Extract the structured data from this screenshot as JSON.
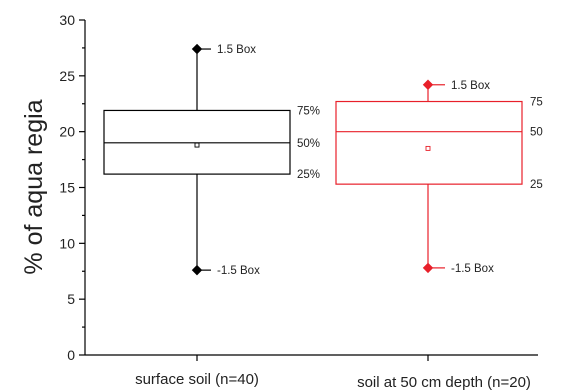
{
  "chart_data": {
    "type": "box",
    "ylabel": "% of aqua regia",
    "xlabel": "",
    "ylim": [
      0,
      30
    ],
    "yticks": [
      "0",
      "5",
      "10",
      "15",
      "20",
      "25",
      "30"
    ],
    "grid": false,
    "boxes": [
      {
        "category": "surface soil (n=40)",
        "color": "#000000",
        "whisker_low": 7.6,
        "q1": 16.2,
        "median": 19.0,
        "q3": 21.9,
        "whisker_high": 27.4,
        "mean": 18.8,
        "labels": {
          "whisker_high": "1.5 Box",
          "q3": "75%",
          "median": "50%",
          "q1": "25%",
          "whisker_low": "-1.5 Box"
        }
      },
      {
        "category": "soil at 50 cm depth (n=20)",
        "color": "#e8202a",
        "whisker_low": 7.8,
        "q1": 15.3,
        "median": 20.0,
        "q3": 22.7,
        "whisker_high": 24.2,
        "mean": 18.5,
        "labels": {
          "whisker_high": "1.5 Box",
          "q3": "75",
          "median": "50",
          "q1": "25",
          "whisker_low": "-1.5 Box"
        }
      }
    ]
  }
}
